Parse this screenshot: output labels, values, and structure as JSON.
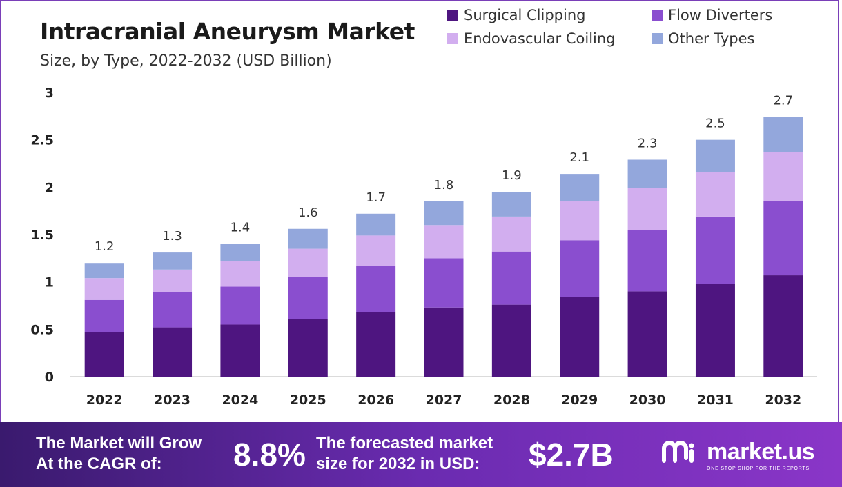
{
  "header": {
    "title": "Intracranial Aneurysm Market",
    "subtitle": "Size, by Type, 2022-2032 (USD Billion)"
  },
  "colors": {
    "surgical_clipping": "#4e1580",
    "flow_diverters": "#8a4ecf",
    "endovascular_coiling": "#d2aeef",
    "other_types": "#93a7dc",
    "frame": "#7a3fb8"
  },
  "chart_data": {
    "type": "bar",
    "stacked": true,
    "categories": [
      "2022",
      "2023",
      "2024",
      "2025",
      "2026",
      "2027",
      "2028",
      "2029",
      "2030",
      "2031",
      "2032"
    ],
    "series": [
      {
        "name": "Surgical Clipping",
        "values": [
          0.47,
          0.52,
          0.55,
          0.61,
          0.68,
          0.73,
          0.76,
          0.84,
          0.9,
          0.98,
          1.07
        ]
      },
      {
        "name": "Flow Diverters",
        "values": [
          0.34,
          0.37,
          0.4,
          0.44,
          0.49,
          0.52,
          0.56,
          0.6,
          0.65,
          0.71,
          0.78
        ]
      },
      {
        "name": "Endovascular Coiling",
        "values": [
          0.23,
          0.24,
          0.27,
          0.3,
          0.32,
          0.35,
          0.37,
          0.41,
          0.44,
          0.47,
          0.52
        ]
      },
      {
        "name": "Other Types",
        "values": [
          0.16,
          0.18,
          0.18,
          0.21,
          0.23,
          0.25,
          0.26,
          0.29,
          0.3,
          0.34,
          0.37
        ]
      }
    ],
    "totals_labels": [
      "1.2",
      "1.3",
      "1.4",
      "1.6",
      "1.7",
      "1.8",
      "1.9",
      "2.1",
      "2.3",
      "2.5",
      "2.7"
    ],
    "y_ticks": [
      "0",
      "0.5",
      "1",
      "1.5",
      "2",
      "2.5",
      "3"
    ],
    "ylim": [
      0,
      3
    ],
    "grid": false,
    "legend_position": "top-right"
  },
  "footer": {
    "cagr_text": "The Market will Grow\nAt the CAGR of:",
    "cagr_value": "8.8%",
    "forecast_text": "The forecasted market\nsize for 2032 in USD:",
    "forecast_value": "$2.7B",
    "brand_name": "market.us",
    "brand_tagline": "ONE STOP SHOP FOR THE REPORTS"
  }
}
